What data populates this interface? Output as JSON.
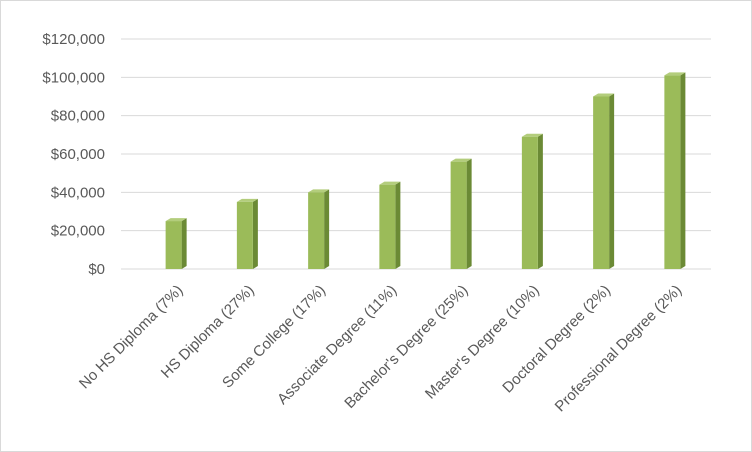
{
  "chart_data": {
    "type": "bar",
    "title": "",
    "xlabel": "",
    "ylabel": "",
    "categories": [
      "No HS Diploma (7%)",
      "HS Diploma (27%)",
      "Some College (17%)",
      "Associate Degree (11%)",
      "Bachelor's Degree (25%)",
      "Master's Degree (10%)",
      "Doctoral Degree (2%)",
      "Professional Degree (2%)"
    ],
    "values": [
      25000,
      35000,
      40000,
      44000,
      56000,
      69000,
      90000,
      101000
    ],
    "ylim": [
      0,
      120000
    ],
    "yticks": [
      "$0",
      "$20,000",
      "$40,000",
      "$60,000",
      "$80,000",
      "$100,000",
      "$120,000"
    ],
    "grid": true,
    "legend": "none",
    "colors": {
      "bar_front": "#9bbb59",
      "bar_side": "#6b8a35",
      "bar_top": "#b3cd7c",
      "grid": "#d9d9d9",
      "text": "#595959"
    }
  }
}
